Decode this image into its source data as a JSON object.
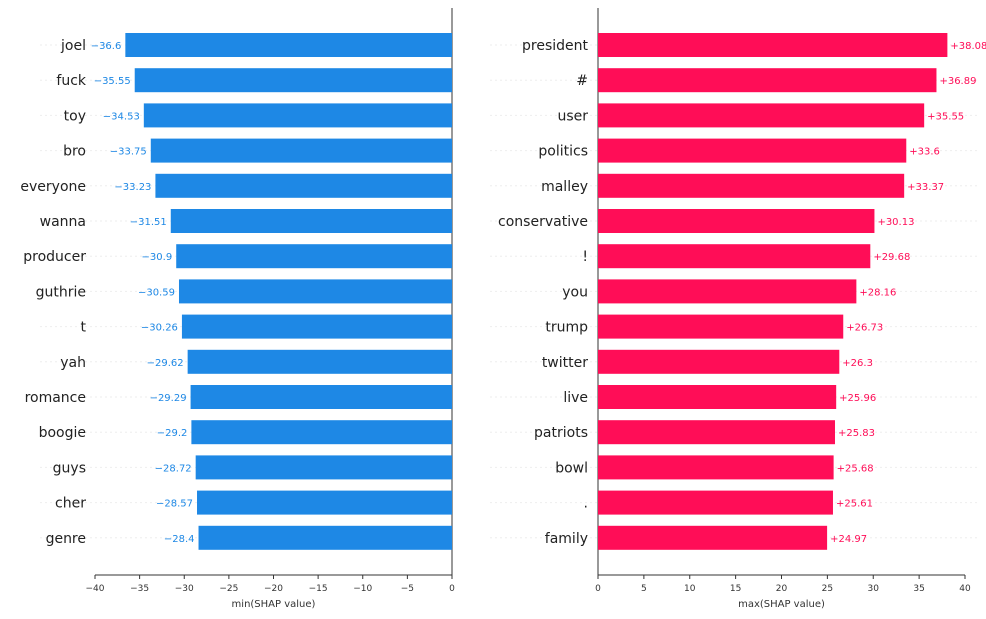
{
  "colors": {
    "negative": "#1E88E5",
    "positive": "#FF0D57",
    "grid": "#eeeeee",
    "axis": "#333333"
  },
  "chart_data": [
    {
      "type": "bar",
      "orientation": "horizontal",
      "xlabel": "min(SHAP value)",
      "xlim": [
        -40,
        0
      ],
      "xticks": [
        -40,
        -35,
        -30,
        -25,
        -20,
        -15,
        -10,
        -5,
        0
      ],
      "categories": [
        "joel",
        "fuck",
        "toy",
        "bro",
        "everyone",
        "wanna",
        "producer",
        "guthrie",
        "t",
        "yah",
        "romance",
        "boogie",
        "guys",
        "cher",
        "genre"
      ],
      "values": [
        -36.6,
        -35.55,
        -34.53,
        -33.75,
        -33.23,
        -31.51,
        -30.9,
        -30.59,
        -30.26,
        -29.62,
        -29.29,
        -29.2,
        -28.72,
        -28.57,
        -28.4
      ],
      "value_labels": [
        "−36.6",
        "−35.55",
        "−34.53",
        "−33.75",
        "−33.23",
        "−31.51",
        "−30.9",
        "−30.59",
        "−30.26",
        "−29.62",
        "−29.29",
        "−29.2",
        "−28.72",
        "−28.57",
        "−28.4"
      ]
    },
    {
      "type": "bar",
      "orientation": "horizontal",
      "xlabel": "max(SHAP value)",
      "xlim": [
        0,
        40
      ],
      "xticks": [
        0,
        5,
        10,
        15,
        20,
        25,
        30,
        35,
        40
      ],
      "categories": [
        "president",
        "#",
        "user",
        "politics",
        "malley",
        "conservative",
        "!",
        "you",
        "trump",
        "twitter",
        "live",
        "patriots",
        "bowl",
        ".",
        "family"
      ],
      "values": [
        38.08,
        36.89,
        35.55,
        33.6,
        33.37,
        30.13,
        29.68,
        28.16,
        26.73,
        26.3,
        25.96,
        25.83,
        25.68,
        25.61,
        24.97
      ],
      "value_labels": [
        "+38.08",
        "+36.89",
        "+35.55",
        "+33.6",
        "+33.37",
        "+30.13",
        "+29.68",
        "+28.16",
        "+26.73",
        "+26.3",
        "+25.96",
        "+25.83",
        "+25.68",
        "+25.61",
        "+24.97"
      ]
    }
  ]
}
